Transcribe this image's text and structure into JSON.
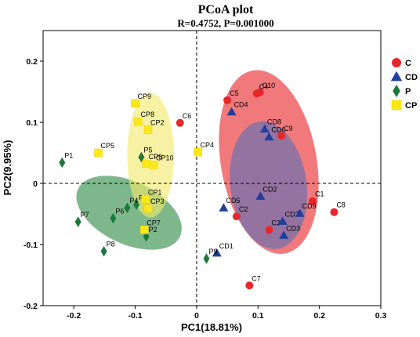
{
  "chart_data": {
    "type": "scatter",
    "title": "PCoA plot",
    "subtitle": "R=0.4752, P=0.001000",
    "xlabel": "PC1(18.81%)",
    "ylabel": "PC2(9.95%)",
    "xlim": [
      -0.25,
      0.3
    ],
    "ylim": [
      -0.2,
      0.25
    ],
    "xticks": [
      "-0.2",
      "-0.1",
      "0",
      "0.1",
      "0.2",
      "0.3"
    ],
    "yticks": [
      "-0.2",
      "-0.1",
      "0",
      "0.1",
      "0.2"
    ],
    "xtick_values": [
      -0.2,
      -0.1,
      0,
      0.1,
      0.2,
      0.3
    ],
    "ytick_values": [
      -0.2,
      -0.1,
      0,
      0.1,
      0.2
    ],
    "grid": false,
    "reference_lines": {
      "x": 0,
      "y": 0,
      "style": "dashed"
    },
    "legend_position": "top-right",
    "series": [
      {
        "name": "C",
        "marker": "circle",
        "color": "#e8262a",
        "ellipse": {
          "cx": 0.1175,
          "cy": 0.035,
          "rx": 0.078,
          "ry": 0.152,
          "angle": -10,
          "color": "#e8262a"
        },
        "points": [
          {
            "label": "C1",
            "x": 0.189,
            "y": -0.029
          },
          {
            "label": "C2",
            "x": 0.065,
            "y": -0.054
          },
          {
            "label": "C3",
            "x": 0.118,
            "y": -0.076
          },
          {
            "label": "C4",
            "x": 0.098,
            "y": 0.147
          },
          {
            "label": "C5",
            "x": 0.05,
            "y": 0.136
          },
          {
            "label": "C6",
            "x": -0.027,
            "y": 0.099
          },
          {
            "label": "C7",
            "x": 0.086,
            "y": -0.167
          },
          {
            "label": "C8",
            "x": 0.224,
            "y": -0.047
          },
          {
            "label": "C9",
            "x": 0.138,
            "y": 0.078
          },
          {
            "label": "C10",
            "x": 0.103,
            "y": 0.149
          }
        ]
      },
      {
        "name": "CD",
        "marker": "triangle",
        "color": "#1f3f9e",
        "ellipse": {
          "cx": 0.117,
          "cy": -0.003,
          "rx": 0.062,
          "ry": 0.105,
          "angle": -8,
          "color": "#5b6fb8"
        },
        "points": [
          {
            "label": "CD1",
            "x": 0.033,
            "y": -0.114
          },
          {
            "label": "CD2",
            "x": 0.104,
            "y": -0.021
          },
          {
            "label": "CD3",
            "x": 0.142,
            "y": -0.085
          },
          {
            "label": "CD4",
            "x": 0.057,
            "y": 0.117
          },
          {
            "label": "CD5",
            "x": 0.044,
            "y": -0.04
          },
          {
            "label": "CD6",
            "x": 0.118,
            "y": 0.076
          },
          {
            "label": "CD7",
            "x": 0.14,
            "y": -0.062
          },
          {
            "label": "CD8",
            "x": 0.111,
            "y": 0.089
          },
          {
            "label": "CD9",
            "x": 0.168,
            "y": -0.049
          }
        ]
      },
      {
        "name": "P",
        "marker": "diamond",
        "color": "#1b7a3a",
        "ellipse": {
          "cx": -0.11,
          "cy": -0.048,
          "rx": 0.051,
          "ry": 0.092,
          "angle": -65,
          "color": "#2e8b46"
        },
        "points": [
          {
            "label": "P1",
            "x": -0.219,
            "y": 0.034
          },
          {
            "label": "P2",
            "x": -0.082,
            "y": -0.087
          },
          {
            "label": "P3",
            "x": -0.098,
            "y": -0.035
          },
          {
            "label": "P4",
            "x": -0.113,
            "y": -0.04
          },
          {
            "label": "P5",
            "x": -0.09,
            "y": 0.043
          },
          {
            "label": "P6",
            "x": -0.136,
            "y": -0.057
          },
          {
            "label": "P7",
            "x": -0.193,
            "y": -0.063
          },
          {
            "label": "P8",
            "x": -0.151,
            "y": -0.111
          },
          {
            "label": "P9",
            "x": 0.016,
            "y": -0.123
          }
        ]
      },
      {
        "name": "CP",
        "marker": "square",
        "color": "#ffe81a",
        "ellipse": {
          "cx": -0.075,
          "cy": 0.046,
          "rx": 0.038,
          "ry": 0.102,
          "angle": 0,
          "color": "#f2ea6a"
        },
        "points": [
          {
            "label": "CP1",
            "x": -0.083,
            "y": -0.026
          },
          {
            "label": "CP2",
            "x": -0.079,
            "y": 0.088
          },
          {
            "label": "CP3",
            "x": -0.079,
            "y": -0.041
          },
          {
            "label": "CP4",
            "x": 0.002,
            "y": 0.051
          },
          {
            "label": "CP5",
            "x": -0.16,
            "y": 0.05
          },
          {
            "label": "CP6",
            "x": -0.082,
            "y": 0.032
          },
          {
            "label": "CP7",
            "x": -0.085,
            "y": -0.076
          },
          {
            "label": "CP8",
            "x": -0.095,
            "y": 0.101
          },
          {
            "label": "CP9",
            "x": -0.1,
            "y": 0.131
          },
          {
            "label": "CP10",
            "x": -0.07,
            "y": 0.03
          }
        ]
      }
    ]
  }
}
